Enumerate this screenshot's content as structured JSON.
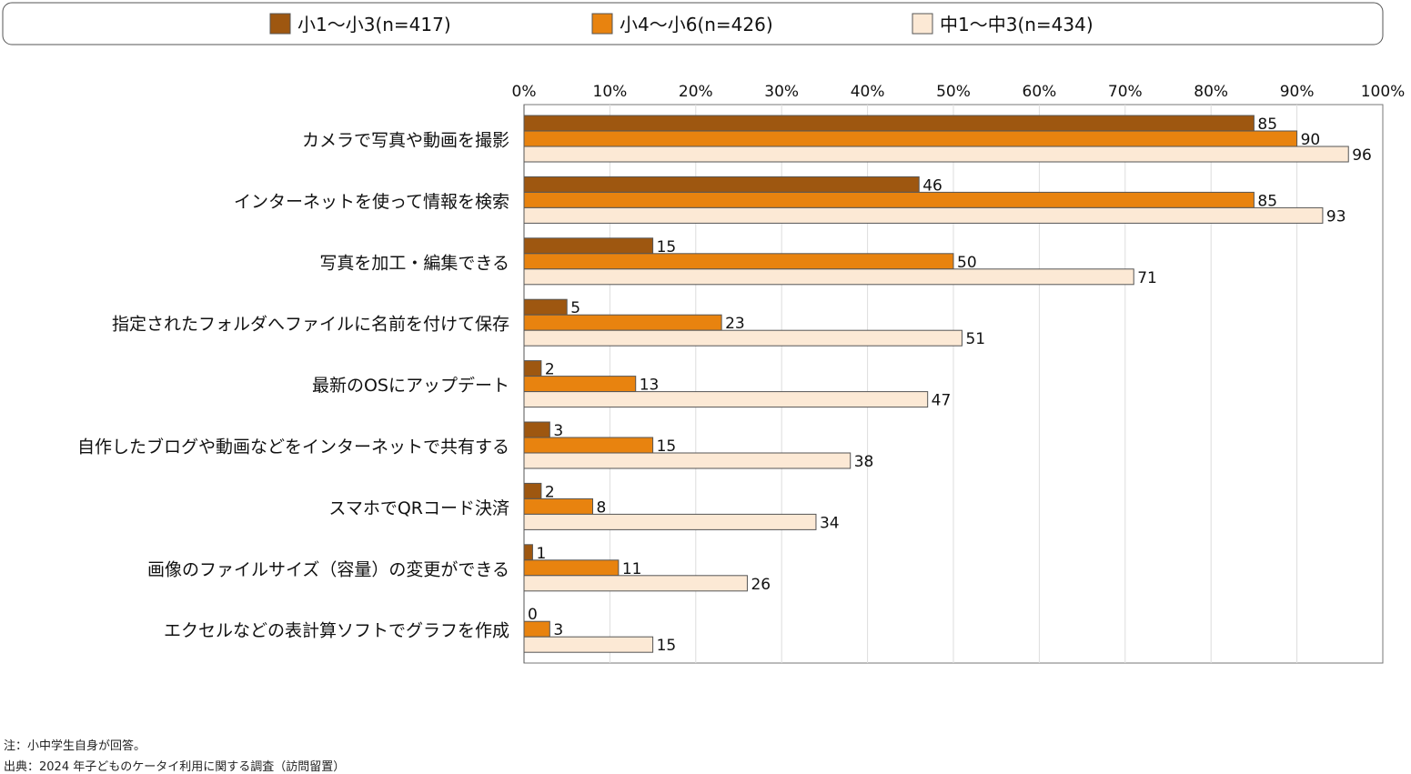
{
  "chart_data": {
    "type": "bar",
    "orientation": "horizontal",
    "xlim": [
      0,
      100
    ],
    "x_ticks": [
      "0%",
      "10%",
      "20%",
      "30%",
      "40%",
      "50%",
      "60%",
      "70%",
      "80%",
      "90%",
      "100%"
    ],
    "grid": true,
    "legend_position": "top",
    "categories": [
      "カメラで写真や動画を撮影",
      "インターネットを使って情報を検索",
      "写真を加工・編集できる",
      "指定されたフォルダへファイルに名前を付けて保存",
      "最新のOSにアップデート",
      "自作したブログや動画などをインターネットで共有する",
      "スマホでQRコード決済",
      "画像のファイルサイズ（容量）の変更ができる",
      "エクセルなどの表計算ソフトでグラフを作成"
    ],
    "series": [
      {
        "name": "小1〜小3(n=417)",
        "color": "#9E5710",
        "values": [
          85,
          46,
          15,
          5,
          2,
          3,
          2,
          1,
          0
        ]
      },
      {
        "name": "小4〜小6(n=426)",
        "color": "#E8830F",
        "values": [
          90,
          85,
          50,
          23,
          13,
          15,
          8,
          11,
          3
        ]
      },
      {
        "name": "中1〜中3(n=434)",
        "color": "#FCE9D5",
        "values": [
          96,
          93,
          71,
          51,
          47,
          38,
          34,
          26,
          15
        ]
      }
    ]
  },
  "notes": {
    "note": "注：小中学生自身が回答。",
    "source": "出典：2024 年子どものケータイ利用に関する調査（訪問留置）"
  }
}
